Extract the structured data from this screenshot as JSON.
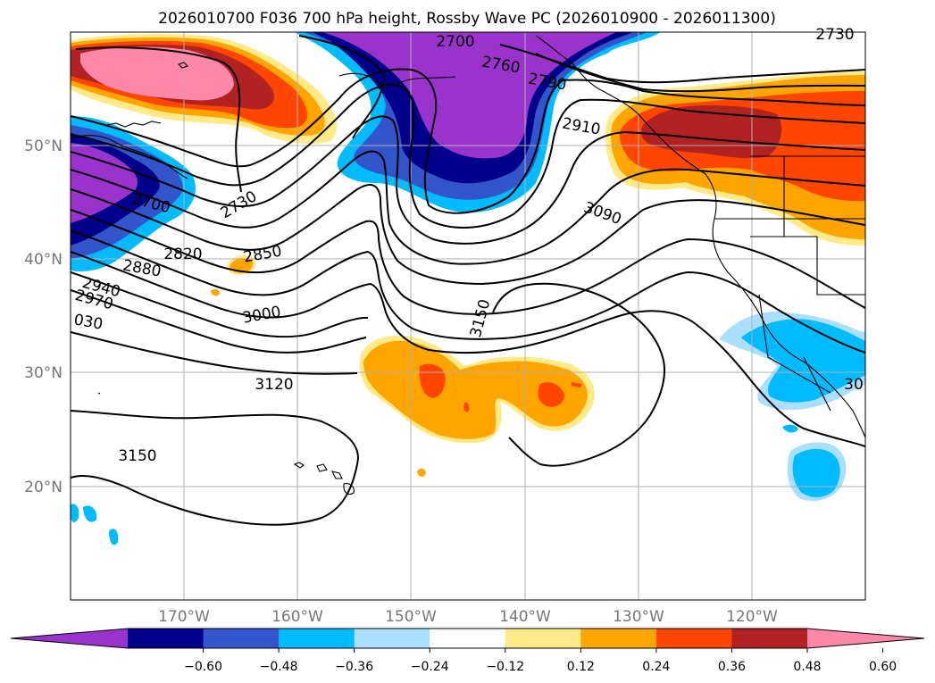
{
  "title": "2026010700 F036 700 hPa height, Rossby Wave PC (2026010900 - 2026011300)",
  "lat_labels": [
    "50°N",
    "40°N",
    "30°N",
    "20°N"
  ],
  "lon_labels": [
    "170°W",
    "160°W",
    "150°W",
    "140°W",
    "130°W",
    "120°W"
  ],
  "contour_labels": [
    "2700",
    "2760",
    "2790",
    "2730",
    "2910",
    "3090",
    "2700",
    "2730",
    "2820",
    "2850",
    "2880",
    "2940",
    "2970",
    "030",
    "3000",
    "3150",
    "3120",
    "3150",
    "30"
  ],
  "colorbar": {
    "ticks": [
      "−0.60",
      "−0.48",
      "−0.36",
      "−0.24",
      "−0.12",
      "0.12",
      "0.24",
      "0.36",
      "0.48",
      "0.60"
    ],
    "colors": [
      "#9933cc",
      "#00008b",
      "#3355cc",
      "#00bbff",
      "#aadfff",
      "#ffffff",
      "#ffea8a",
      "#ffa500",
      "#ff4500",
      "#b22222",
      "#ff88aa"
    ]
  }
}
